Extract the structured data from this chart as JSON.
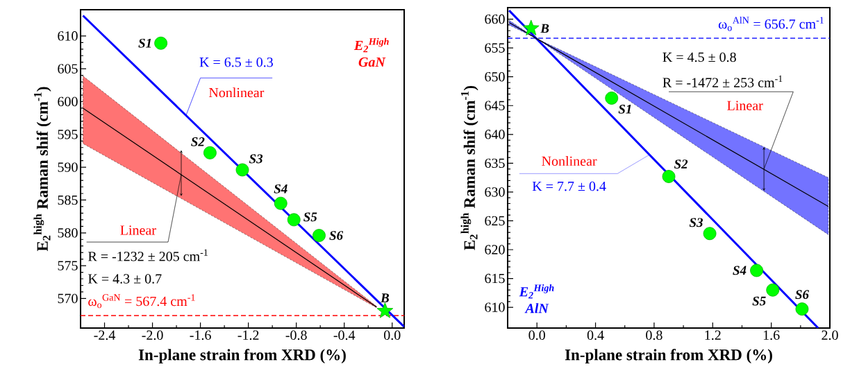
{
  "chart_data": [
    {
      "type": "scatter",
      "xlabel": "In-plane strain from XRD (%)",
      "ylabel": "E$_{2}$$^{high}$ Raman shif (cm$^{-1}$)",
      "xlim": [
        -2.6,
        0.1
      ],
      "ylim": [
        565.5,
        614
      ],
      "xticks": [
        {
          "value": -2.4,
          "label": "-2.4"
        },
        {
          "value": -2.0,
          "label": "-2.0"
        },
        {
          "value": -1.6,
          "label": "-1.6"
        },
        {
          "value": -1.2,
          "label": "-1.2"
        },
        {
          "value": -0.8,
          "label": "-0.8"
        },
        {
          "value": -0.4,
          "label": "-0.4"
        },
        {
          "value": 0.0,
          "label": "0.0"
        }
      ],
      "yticks": [
        570,
        575,
        580,
        585,
        590,
        595,
        600,
        605,
        610
      ],
      "series": [
        {
          "type": "line",
          "color": "#0000ff",
          "marker": "none",
          "line_style": "solid",
          "x": [
            -2.58,
            0.1
          ],
          "values": [
            613.1,
            565.7
          ]
        },
        {
          "type": "line",
          "color": "#000000",
          "marker": "none",
          "line_style": "solid",
          "x": [
            -2.58,
            -0.13
          ],
          "values": [
            599.0,
            568.7
          ],
          "lower": [
            593.6,
            568.6
          ],
          "upper": [
            603.9,
            568.8
          ]
        },
        {
          "type": "scatter",
          "color": "#00ff00",
          "marker": "circle",
          "x": [
            -1.93,
            -1.52,
            -1.25,
            -0.93,
            -0.82,
            -0.61
          ],
          "values": [
            608.9,
            592.2,
            589.6,
            584.5,
            582.0,
            579.6
          ]
        },
        {
          "type": "scatter",
          "color": "#00ff00",
          "marker": "star",
          "x": [
            -0.06
          ],
          "values": [
            568.1
          ]
        }
      ],
      "ref_lines": [
        {
          "axis": "y",
          "value": 567.4,
          "label": "ω$_{o}$$^{GaN}$ = 567.4 cm$^{-1}$",
          "color": "#ff0000",
          "line_style": "dashed"
        }
      ],
      "annotations": [
        "E$_{2}$$^{High}$ GaN",
        {
          "text": "K = 6.5 ± 0.3",
          "x": -1.72,
          "y": 597.9
        },
        {
          "text": "Nonlinear",
          "x": -1.72,
          "y": 597.9
        },
        {
          "text": "Linear",
          "x": -1.76,
          "y": 588.9
        },
        {
          "text": "R = -1232 ± 205 cm$^{-1}$",
          "x": -1.76,
          "y": 588.9
        },
        "K = 4.3 ± 0.7",
        {
          "text": "S1",
          "x": -1.93,
          "y": 608.9
        },
        {
          "text": "S2",
          "x": -1.52,
          "y": 592.2
        },
        {
          "text": "S3",
          "x": -1.25,
          "y": 589.6
        },
        {
          "text": "S4",
          "x": -0.93,
          "y": 584.5
        },
        {
          "text": "S5",
          "x": -0.82,
          "y": 582.0
        },
        {
          "text": "S6",
          "x": -0.61,
          "y": 579.6
        },
        {
          "text": "B",
          "x": -0.06,
          "y": 568.1
        }
      ]
    },
    {
      "type": "scatter",
      "xlabel": "In-plane strain from XRD (%)",
      "ylabel": "E$_{2}$$^{high}$ Raman shif (cm$^{-1}$)",
      "xlim": [
        -0.2,
        2.0
      ],
      "ylim": [
        606.4,
        662
      ],
      "xticks": [
        {
          "value": 0.0,
          "label": "0.0"
        },
        {
          "value": 0.4,
          "label": "0.4"
        },
        {
          "value": 0.8,
          "label": "0.8"
        },
        {
          "value": 1.2,
          "label": "1.2"
        },
        {
          "value": 1.6,
          "label": "1.6"
        },
        {
          "value": 2.0,
          "label": "2.0"
        }
      ],
      "yticks": [
        610,
        615,
        620,
        625,
        630,
        635,
        640,
        645,
        650,
        655,
        660
      ],
      "series": [
        {
          "type": "line",
          "color": "#0000ff",
          "marker": "none",
          "line_style": "solid",
          "x": [
            -0.19,
            1.92
          ],
          "values": [
            661.5,
            606.4
          ]
        },
        {
          "type": "line",
          "color": "#000000",
          "marker": "none",
          "line_style": "solid",
          "x": [
            -0.19,
            0.0,
            1.99
          ],
          "values": [
            659.4,
            656.6,
            627.5
          ],
          "lower": [
            659.0,
            656.6,
            622.6
          ],
          "upper": [
            659.8,
            656.6,
            632.5
          ]
        },
        {
          "type": "scatter",
          "color": "#00ff00",
          "marker": "circle",
          "x": [
            0.51,
            0.9,
            1.18,
            1.5,
            1.61,
            1.81
          ],
          "values": [
            646.3,
            632.7,
            622.8,
            616.4,
            613.0,
            609.7
          ]
        },
        {
          "type": "scatter",
          "color": "#00ff00",
          "marker": "star",
          "x": [
            -0.04
          ],
          "values": [
            658.4
          ]
        }
      ],
      "ref_lines": [
        {
          "axis": "y",
          "value": 656.7,
          "label": "ω$_{o}$$^{AlN}$ = 656.7 cm$^{-1}$",
          "color": "#0000ff",
          "line_style": "dashed"
        }
      ],
      "annotations": [
        "E$_{2}$$^{High}$ AlN",
        "K = 4.5 ± 0.8",
        {
          "text": "R = -1472 ± 253 cm$^{-1}$",
          "x": 1.55,
          "y": 634.0
        },
        {
          "text": "Linear",
          "x": 1.55,
          "y": 634.0
        },
        {
          "text": "Nonlinear",
          "x": 0.77,
          "y": 636.5
        },
        "K = 7.7 ± 0.4",
        {
          "text": "S1",
          "x": 0.51,
          "y": 646.3
        },
        {
          "text": "S2",
          "x": 0.9,
          "y": 632.7
        },
        {
          "text": "S3",
          "x": 1.18,
          "y": 622.8
        },
        {
          "text": "S4",
          "x": 1.5,
          "y": 616.4
        },
        {
          "text": "S5",
          "x": 1.61,
          "y": 613.0
        },
        {
          "text": "S6",
          "x": 1.81,
          "y": 609.7
        },
        {
          "text": "B",
          "x": -0.04,
          "y": 658.4
        }
      ]
    }
  ]
}
